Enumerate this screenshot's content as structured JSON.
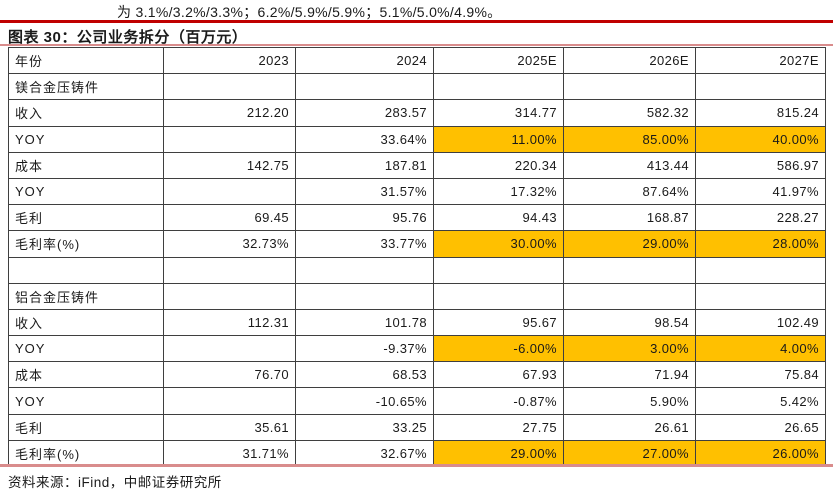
{
  "page": {
    "top_text": "为 3.1%/3.2%/3.3%；6.2%/5.9%/5.9%；5.1%/5.0%/4.9%。",
    "caption": "图表 30：公司业务拆分（百万元）",
    "source": "资料来源：iFind，中邮证券研究所"
  },
  "colors": {
    "accent_red": "#c00000",
    "soft_red_rule": "#d98c8c",
    "highlight": "#ffc000",
    "table_border": "#3f3f3f"
  },
  "table": {
    "columns": [
      "年份",
      "2023",
      "2024",
      "2025E",
      "2026E",
      "2027E"
    ],
    "rows": [
      {
        "label": "镁合金压铸件",
        "section": true,
        "cells": [
          "",
          "",
          "",
          "",
          ""
        ]
      },
      {
        "label": "收入",
        "cells": [
          "212.20",
          "283.57",
          "314.77",
          "582.32",
          "815.24"
        ]
      },
      {
        "label": "YOY",
        "cells": [
          "",
          "33.64%",
          "11.00%",
          "85.00%",
          "40.00%"
        ],
        "highlight": [
          2,
          3,
          4
        ]
      },
      {
        "label": "成本",
        "cells": [
          "142.75",
          "187.81",
          "220.34",
          "413.44",
          "586.97"
        ]
      },
      {
        "label": "YOY",
        "cells": [
          "",
          "31.57%",
          "17.32%",
          "87.64%",
          "41.97%"
        ]
      },
      {
        "label": "毛利",
        "cells": [
          "69.45",
          "95.76",
          "94.43",
          "168.87",
          "228.27"
        ]
      },
      {
        "label": "毛利率(%)",
        "cells": [
          "32.73%",
          "33.77%",
          "30.00%",
          "29.00%",
          "28.00%"
        ],
        "highlight": [
          2,
          3,
          4
        ]
      },
      {
        "label": "",
        "cells": [
          "",
          "",
          "",
          "",
          ""
        ]
      },
      {
        "label": "铝合金压铸件",
        "section": true,
        "cells": [
          "",
          "",
          "",
          "",
          ""
        ]
      },
      {
        "label": "收入",
        "cells": [
          "112.31",
          "101.78",
          "95.67",
          "98.54",
          "102.49"
        ]
      },
      {
        "label": "YOY",
        "cells": [
          "",
          "-9.37%",
          "-6.00%",
          "3.00%",
          "4.00%"
        ],
        "highlight": [
          2,
          3,
          4
        ]
      },
      {
        "label": "成本",
        "cells": [
          "76.70",
          "68.53",
          "67.93",
          "71.94",
          "75.84"
        ]
      },
      {
        "label": "YOY",
        "cells": [
          "",
          "-10.65%",
          "-0.87%",
          "5.90%",
          "5.42%"
        ]
      },
      {
        "label": "毛利",
        "cells": [
          "35.61",
          "33.25",
          "27.75",
          "26.61",
          "26.65"
        ]
      },
      {
        "label": "毛利率(%)",
        "cells": [
          "31.71%",
          "32.67%",
          "29.00%",
          "27.00%",
          "26.00%"
        ],
        "highlight": [
          2,
          3,
          4
        ]
      }
    ]
  }
}
